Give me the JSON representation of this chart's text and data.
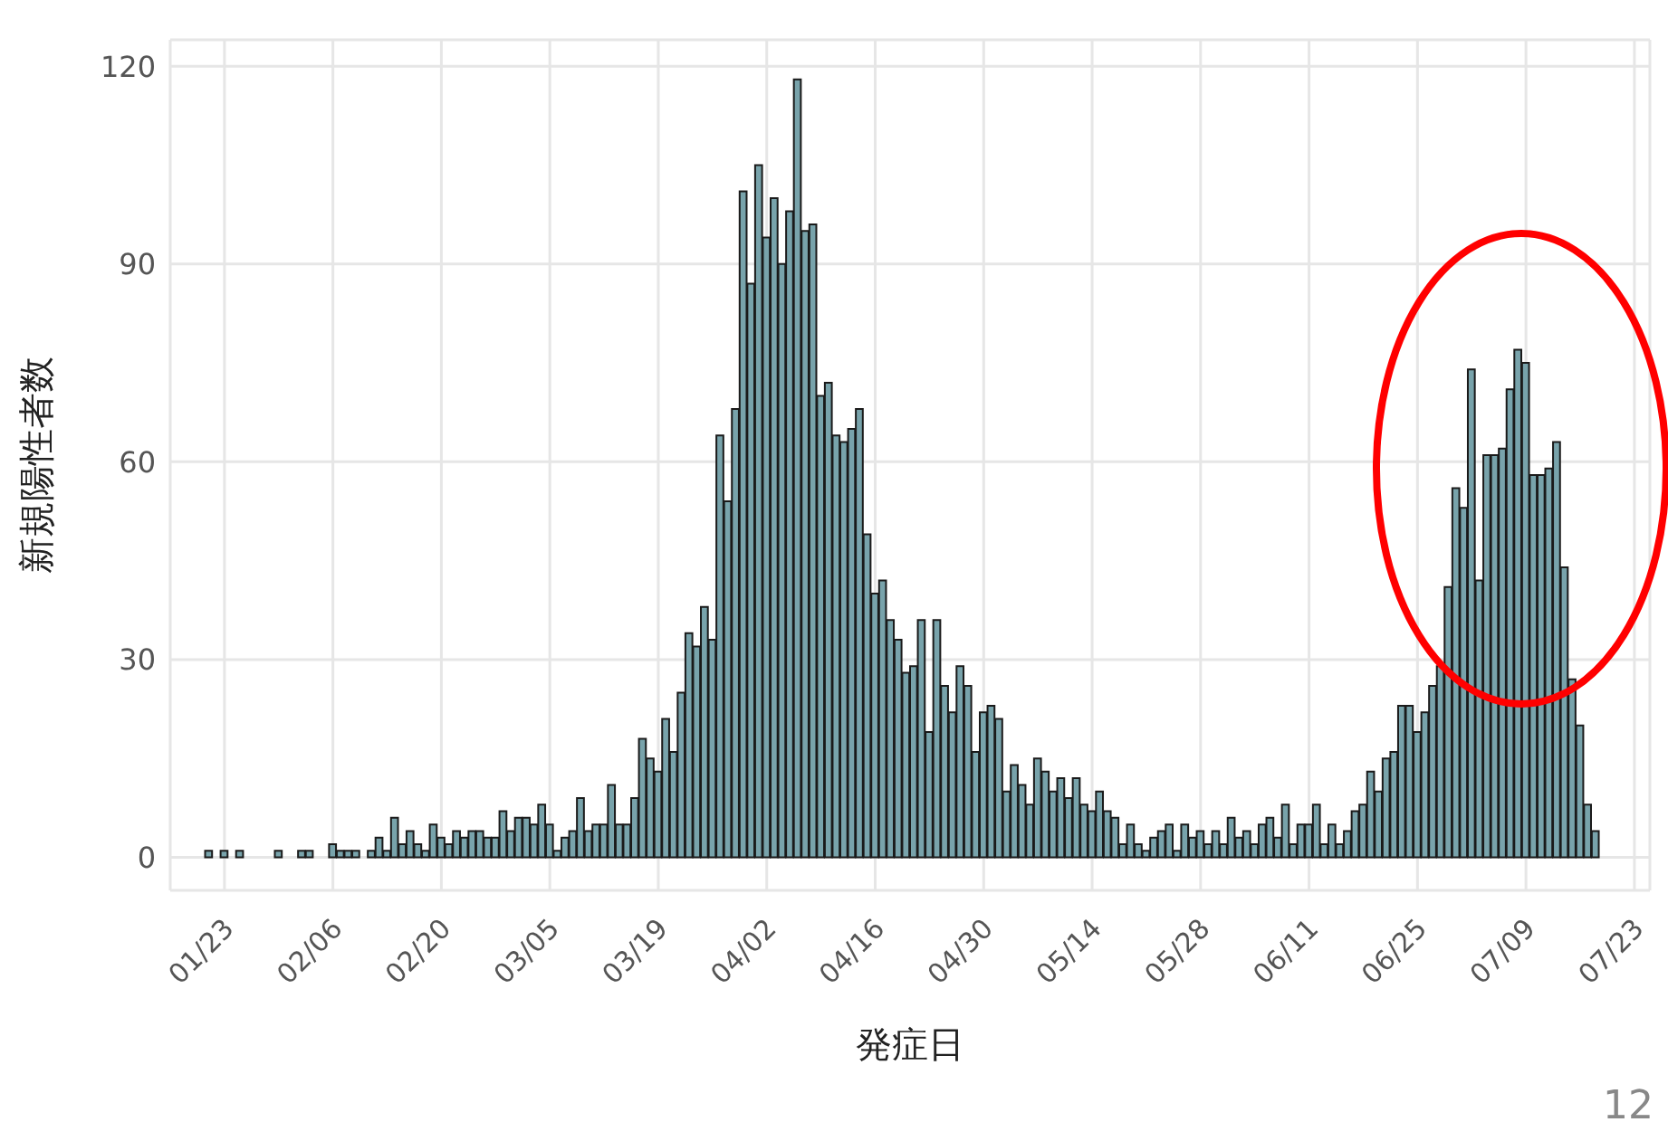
{
  "chart_data": {
    "type": "bar",
    "xlabel": "発症日",
    "ylabel": "新規陽性者数",
    "x": [
      "--01-21",
      "--01-22",
      "--01-23",
      "--01-24",
      "--01-25",
      "--01-26",
      "--01-27",
      "--01-28",
      "--01-29",
      "--01-30",
      "--01-31",
      "--02-01",
      "--02-02",
      "--02-03",
      "--02-04",
      "--02-05",
      "--02-06",
      "--02-07",
      "--02-08",
      "--02-09",
      "--02-10",
      "--02-11",
      "--02-12",
      "--02-13",
      "--02-14",
      "--02-15",
      "--02-16",
      "--02-17",
      "--02-18",
      "--02-19",
      "--02-20",
      "--02-21",
      "--02-22",
      "--02-23",
      "--02-24",
      "--02-25",
      "--02-26",
      "--02-27",
      "--02-28",
      "--02-29",
      "--03-01",
      "--03-02",
      "--03-03",
      "--03-04",
      "--03-05",
      "--03-06",
      "--03-07",
      "--03-08",
      "--03-09",
      "--03-10",
      "--03-11",
      "--03-12",
      "--03-13",
      "--03-14",
      "--03-15",
      "--03-16",
      "--03-17",
      "--03-18",
      "--03-19",
      "--03-20",
      "--03-21",
      "--03-22",
      "--03-23",
      "--03-24",
      "--03-25",
      "--03-26",
      "--03-27",
      "--03-28",
      "--03-29",
      "--03-30",
      "--03-31",
      "--04-01",
      "--04-02",
      "--04-03",
      "--04-04",
      "--04-05",
      "--04-06",
      "--04-07",
      "--04-08",
      "--04-09",
      "--04-10",
      "--04-11",
      "--04-12",
      "--04-13",
      "--04-14",
      "--04-15",
      "--04-16",
      "--04-17",
      "--04-18",
      "--04-19",
      "--04-20",
      "--04-21",
      "--04-22",
      "--04-23",
      "--04-24",
      "--04-25",
      "--04-26",
      "--04-27",
      "--04-28",
      "--04-29",
      "--04-30",
      "--05-01",
      "--05-02",
      "--05-03",
      "--05-04",
      "--05-05",
      "--05-06",
      "--05-07",
      "--05-08",
      "--05-09",
      "--05-10",
      "--05-11",
      "--05-12",
      "--05-13",
      "--05-14",
      "--05-15",
      "--05-16",
      "--05-17",
      "--05-18",
      "--05-19",
      "--05-20",
      "--05-21",
      "--05-22",
      "--05-23",
      "--05-24",
      "--05-25",
      "--05-26",
      "--05-27",
      "--05-28",
      "--05-29",
      "--05-30",
      "--05-31",
      "--06-01",
      "--06-02",
      "--06-03",
      "--06-04",
      "--06-05",
      "--06-06",
      "--06-07",
      "--06-08",
      "--06-09",
      "--06-10",
      "--06-11",
      "--06-12",
      "--06-13",
      "--06-14",
      "--06-15",
      "--06-16",
      "--06-17",
      "--06-18",
      "--06-19",
      "--06-20",
      "--06-21",
      "--06-22",
      "--06-23",
      "--06-24",
      "--06-25",
      "--06-26",
      "--06-27",
      "--06-28",
      "--06-29",
      "--06-30",
      "--07-01",
      "--07-02",
      "--07-03",
      "--07-04",
      "--07-05",
      "--07-06",
      "--07-07",
      "--07-08",
      "--07-09",
      "--07-10",
      "--07-11",
      "--07-12",
      "--07-13",
      "--07-14",
      "--07-15",
      "--07-16",
      "--07-17",
      "--07-18"
    ],
    "values": [
      1,
      0,
      1,
      0,
      1,
      0,
      0,
      0,
      0,
      1,
      0,
      0,
      1,
      1,
      0,
      0,
      2,
      1,
      1,
      1,
      0,
      1,
      3,
      1,
      6,
      2,
      4,
      2,
      1,
      5,
      3,
      2,
      4,
      3,
      4,
      4,
      3,
      3,
      7,
      4,
      6,
      6,
      5,
      8,
      5,
      1,
      3,
      4,
      9,
      4,
      5,
      5,
      11,
      5,
      5,
      9,
      18,
      15,
      13,
      21,
      16,
      25,
      34,
      32,
      38,
      33,
      64,
      54,
      68,
      101,
      87,
      105,
      94,
      100,
      90,
      98,
      118,
      95,
      96,
      70,
      72,
      64,
      63,
      65,
      68,
      49,
      40,
      42,
      36,
      33,
      28,
      29,
      36,
      19,
      36,
      26,
      22,
      29,
      26,
      16,
      22,
      23,
      21,
      10,
      14,
      11,
      8,
      15,
      13,
      10,
      12,
      9,
      12,
      8,
      7,
      10,
      7,
      6,
      2,
      5,
      2,
      1,
      3,
      4,
      5,
      1,
      5,
      3,
      4,
      2,
      4,
      2,
      6,
      3,
      4,
      2,
      5,
      6,
      3,
      8,
      2,
      5,
      5,
      8,
      2,
      5,
      2,
      4,
      7,
      8,
      13,
      10,
      15,
      16,
      23,
      23,
      19,
      22,
      26,
      29,
      41,
      56,
      53,
      74,
      42,
      61,
      61,
      62,
      71,
      77,
      75,
      58,
      58,
      59,
      63,
      44,
      27,
      20,
      8,
      4
    ],
    "color": "#78a3ab",
    "xlim": [
      "--01-16",
      "--07-25"
    ],
    "xticks": [
      {
        "value": "--01-23",
        "label": "01/23"
      },
      {
        "value": "--02-06",
        "label": "02/06"
      },
      {
        "value": "--02-20",
        "label": "02/20"
      },
      {
        "value": "--03-05",
        "label": "03/05"
      },
      {
        "value": "--03-19",
        "label": "03/19"
      },
      {
        "value": "--04-02",
        "label": "04/02"
      },
      {
        "value": "--04-16",
        "label": "04/16"
      },
      {
        "value": "--04-30",
        "label": "04/30"
      },
      {
        "value": "--05-14",
        "label": "05/14"
      },
      {
        "value": "--05-28",
        "label": "05/28"
      },
      {
        "value": "--06-11",
        "label": "06/11"
      },
      {
        "value": "--06-25",
        "label": "06/25"
      },
      {
        "value": "--07-09",
        "label": "07/09"
      },
      {
        "value": "--07-23",
        "label": "07/23"
      }
    ],
    "ylim": [
      -5,
      124
    ],
    "yticks": [
      0,
      30,
      60,
      90,
      120
    ],
    "grid": true,
    "annotations": [
      "12"
    ]
  }
}
